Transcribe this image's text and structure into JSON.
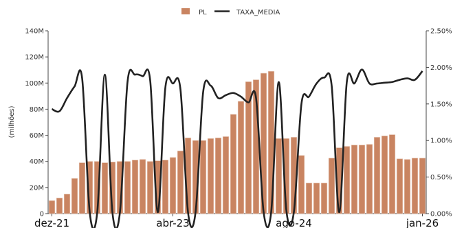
{
  "chart_data": {
    "type": "bar",
    "legend": {
      "position": "top-center",
      "items": [
        {
          "label": "PL",
          "kind": "bar",
          "color": "#c98461"
        },
        {
          "label": "TAXA_MEDIA",
          "kind": "line",
          "color": "#222222"
        }
      ]
    },
    "ylabel": "(milhões)",
    "y_left": {
      "min": 0,
      "max": 140,
      "ticks": [
        0,
        20,
        40,
        60,
        80,
        100,
        120,
        140
      ],
      "tick_labels": [
        "0",
        "20M",
        "40M",
        "60M",
        "80M",
        "100M",
        "120M",
        "140M"
      ]
    },
    "y_right": {
      "min": 0,
      "max": 2.5,
      "ticks": [
        0,
        0.5,
        1.0,
        1.5,
        2.0,
        2.5
      ],
      "tick_labels": [
        "0.00%",
        "0.50%",
        "1.00%",
        "1.50%",
        "2.00%",
        "2.50%"
      ]
    },
    "x_tick_labels": [
      {
        "label": "dez-21",
        "index": 0
      },
      {
        "label": "abr-23",
        "index": 16
      },
      {
        "label": "ago-24",
        "index": 32
      },
      {
        "label": "jan-26",
        "index": 49
      }
    ],
    "grid": false,
    "series": [
      {
        "name": "PL",
        "type": "bar",
        "axis": "left",
        "color": "#c98461",
        "values": [
          10,
          12,
          15,
          27,
          39,
          40,
          40,
          39,
          39.5,
          40,
          40,
          41,
          41.5,
          40,
          40.5,
          41,
          43,
          48,
          58,
          56,
          56,
          57.5,
          58,
          59,
          76,
          86,
          101,
          102.5,
          107.5,
          109,
          57.5,
          57.5,
          58.5,
          44.5,
          23.5,
          23.5,
          23.5,
          42.5,
          50.5,
          51.5,
          52.5,
          52.5,
          53,
          58.5,
          59.5,
          60.5,
          42,
          41.5,
          42.5,
          42.5
        ]
      },
      {
        "name": "TAXA_MEDIA",
        "type": "line",
        "axis": "right",
        "color": "#222222",
        "values": [
          1.43,
          1.4,
          1.58,
          1.74,
          1.85,
          0.02,
          0.02,
          1.9,
          0.02,
          0.02,
          1.8,
          1.9,
          1.88,
          1.82,
          0.02,
          1.72,
          1.78,
          1.7,
          0.02,
          0.02,
          1.66,
          1.75,
          1.58,
          1.62,
          1.65,
          1.6,
          1.52,
          1.58,
          0.02,
          0.02,
          1.8,
          0.05,
          0.02,
          1.5,
          1.6,
          1.78,
          1.86,
          1.75,
          0.02,
          1.8,
          1.78,
          1.97,
          1.78,
          1.78,
          1.79,
          1.8,
          1.83,
          1.85,
          1.83,
          1.95
        ]
      }
    ]
  }
}
